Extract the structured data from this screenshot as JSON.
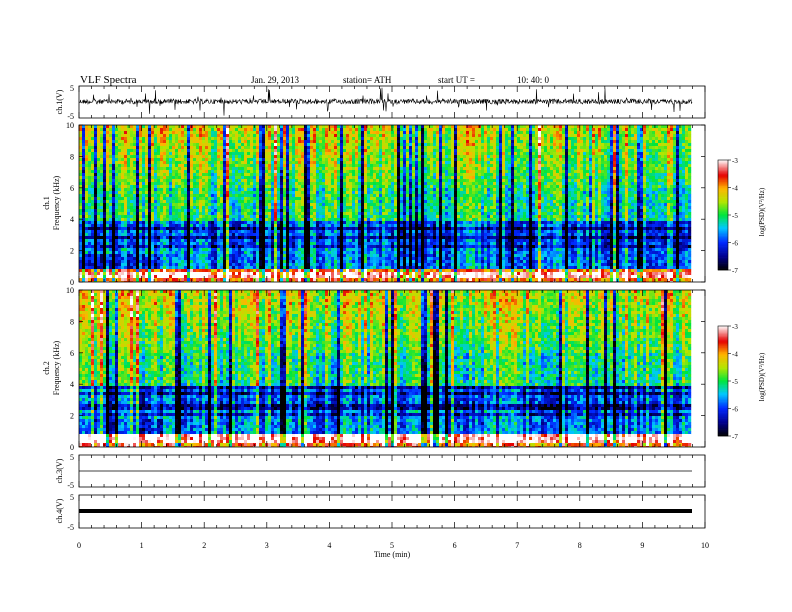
{
  "header": {
    "title": "VLF  Spectra",
    "date": "Jan. 29, 2013",
    "station": "station= ATH",
    "start_ut_label": "start  UT  =",
    "start_ut_value": "10: 40: 0"
  },
  "chart_data": [
    {
      "type": "line",
      "panel": "ch1-waveform",
      "ylabel": "ch.1(V)",
      "ylim": [
        -5,
        5
      ],
      "y_ticks": [
        "5",
        "-5"
      ],
      "xlim": [
        0,
        9.8
      ],
      "description_values": "broadband noise around -0.3 V with impulsive spikes to about ±3 V"
    },
    {
      "type": "heatmap",
      "panel": "ch1-spectrogram",
      "ylabel_line1": "ch.1",
      "ylabel_line2": "Frequency  (kHz)",
      "ylim": [
        0,
        10
      ],
      "y_ticks": [
        "0",
        "2",
        "4",
        "6",
        "8",
        "10"
      ],
      "xlim": [
        0,
        9.8
      ],
      "colorbar": {
        "label": "log(PSD)(V²/Hz)",
        "range": [
          -7,
          -3
        ],
        "ticks": [
          "-7",
          "-6",
          "-5",
          "-4",
          "-3"
        ]
      }
    },
    {
      "type": "heatmap",
      "panel": "ch2-spectrogram",
      "ylabel_line1": "ch.2",
      "ylabel_line2": "Frequency  (kHz)",
      "ylim": [
        0,
        10
      ],
      "y_ticks": [
        "0",
        "2",
        "4",
        "6",
        "8",
        "10"
      ],
      "xlim": [
        0,
        9.8
      ],
      "colorbar": {
        "label": "log(PSD)(V²/Hz)",
        "range": [
          -7,
          -3
        ],
        "ticks": [
          "-7",
          "-6",
          "-5",
          "-4",
          "-3"
        ]
      }
    },
    {
      "type": "line",
      "panel": "ch3-waveform",
      "ylabel": "ch.3(V)",
      "ylim": [
        -5,
        5
      ],
      "y_ticks": [
        "5",
        "-5"
      ],
      "xlim": [
        0,
        9.8
      ],
      "level": 0
    },
    {
      "type": "line",
      "panel": "ch4-waveform",
      "ylabel": "ch.4(V)",
      "ylim": [
        -5,
        5
      ],
      "y_ticks": [
        "5",
        "-5"
      ],
      "xlim": [
        0,
        9.8
      ],
      "level": 0
    }
  ],
  "x_axis": {
    "label": "Time  (min)",
    "ticks": [
      "0",
      "1",
      "2",
      "3",
      "4",
      "5",
      "6",
      "7",
      "8",
      "9",
      "10"
    ]
  }
}
